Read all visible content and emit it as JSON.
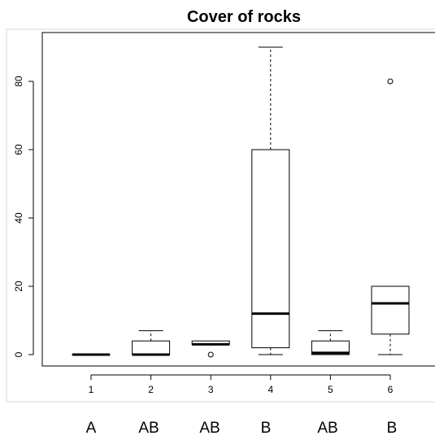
{
  "chart_data": {
    "type": "box",
    "title": "Cover of rocks",
    "xlabel": "",
    "ylabel": "",
    "categories": [
      "1",
      "2",
      "3",
      "4",
      "5",
      "6"
    ],
    "ylim": [
      0,
      90
    ],
    "y_ticks": [
      "0",
      "20",
      "40",
      "60",
      "80"
    ],
    "group_letters": [
      "A",
      "AB",
      "AB",
      "B",
      "AB",
      "B"
    ],
    "boxes": [
      {
        "category": "1",
        "min": 0,
        "q1": 0,
        "median": 0,
        "q3": 0,
        "max": 0,
        "outliers": []
      },
      {
        "category": "2",
        "min": 0,
        "q1": 0,
        "median": 0,
        "q3": 4,
        "max": 7,
        "outliers": []
      },
      {
        "category": "3",
        "min": 3,
        "q1": 3,
        "median": 3,
        "q3": 4,
        "max": 4,
        "outliers": [
          0
        ]
      },
      {
        "category": "4",
        "min": 0,
        "q1": 2,
        "median": 12,
        "q3": 60,
        "max": 90,
        "outliers": []
      },
      {
        "category": "5",
        "min": 0,
        "q1": 0,
        "median": 0.5,
        "q3": 4,
        "max": 7,
        "outliers": []
      },
      {
        "category": "6",
        "min": 0,
        "q1": 6,
        "median": 15,
        "q3": 20,
        "max": 20,
        "outliers": [
          80
        ]
      }
    ],
    "grid": false
  }
}
